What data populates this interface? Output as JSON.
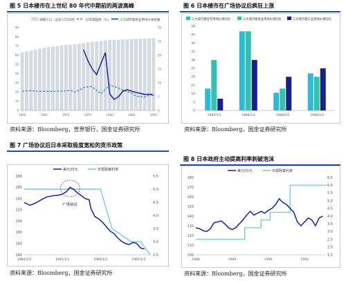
{
  "figures": [
    {
      "title": "图 5  日本楼市在上世纪 80 年代中期前的两波高峰",
      "source": "资料来源：Bloomberg，世界银行，国金证券研究所",
      "legend": [
        "城镇人口（占总人口比例）",
        "10年期国债（%）",
        "三大城市圈商业用地价格指数"
      ]
    },
    {
      "title": "图 6  日本楼市在广场协议后疯狂上涨",
      "source": "资料来源：Bloomberg，国金证券研究所",
      "legend": [
        "三大城市圈住宅用地价格同比",
        "三大城市圈商业用地价格同比",
        "三大城市圈工业用地价格同比"
      ]
    },
    {
      "title": "图 7  广场协议后日本采取极度宽松的货币政策",
      "source": "资料来源：Bloomberg，国金证券研究所",
      "legend": [
        "美元/日元",
        "日银政策利率"
      ],
      "annotation": "广场协议"
    },
    {
      "title": "图 8  日本政府主动提高利率刺破泡沫",
      "source": "资料来源：Bloomberg，国金证券研究所",
      "legend": [
        "美元/日元",
        "日银政策利率"
      ]
    }
  ],
  "chart_data": [
    {
      "type": "bar",
      "title": "图 5  日本楼市在上世纪 80 年代中期前的两波高峰",
      "x_ticks": [
        "1960",
        "1965",
        "1970",
        "1975",
        "1980",
        "1985",
        "1990"
      ],
      "ylim_left": [
        0,
        90
      ],
      "ylim_right": [
        0,
        30
      ],
      "categories": [
        1960,
        1961,
        1962,
        1963,
        1964,
        1965,
        1966,
        1967,
        1968,
        1969,
        1970,
        1971,
        1972,
        1973,
        1974,
        1975,
        1976,
        1977,
        1978,
        1979,
        1980,
        1981,
        1982,
        1983,
        1984,
        1985,
        1986,
        1987,
        1988,
        1989,
        1990
      ],
      "series": [
        {
          "name": "城镇人口（占总人口比例）",
          "type": "bar",
          "values": [
            63,
            64,
            65,
            66,
            67,
            68,
            69,
            69.5,
            70,
            70.5,
            71,
            71.5,
            72,
            72.5,
            73,
            74,
            74.5,
            75,
            75.5,
            76,
            76.5,
            76.8,
            77,
            77.2,
            77.4,
            77.6,
            77.8,
            78,
            78.2,
            78.4,
            78.6
          ]
        },
        {
          "name": "10年期国债（%）",
          "type": "line",
          "axis": "right",
          "values": [
            7.0,
            7.1,
            7.2,
            7.0,
            6.9,
            6.9,
            6.9,
            6.9,
            7.0,
            7.0,
            7.1,
            7.3,
            6.7,
            7.3,
            8.3,
            8.6,
            8.6,
            7.3,
            6.1,
            7.7,
            9.2,
            8.7,
            8.1,
            7.4,
            6.8,
            6.3,
            5.2,
            5.0,
            4.9,
            5.5,
            6.4
          ]
        },
        {
          "name": "三大城市圈商业用地价格指数",
          "type": "line",
          "axis": "right",
          "x": [
            1974,
            1975,
            1976,
            1977,
            1978,
            1979,
            1980,
            1981,
            1982,
            1983,
            1984,
            1985,
            1986,
            1987,
            1988,
            1989,
            1990
          ],
          "values": [
            22.0,
            18.0,
            15.0,
            13.0,
            17.0,
            21.0,
            6.0,
            4.0,
            5.0,
            7.0,
            7.5,
            7.0,
            6.5,
            6.2,
            5.8,
            5.9,
            5.5
          ]
        }
      ]
    },
    {
      "type": "bar",
      "title": "图 6  日本楼市在广场协议后疯狂上涨",
      "categories": [
        "1987/1/1",
        "1988/1/1",
        "1989/1/1",
        "1990/1/1"
      ],
      "ylim": [
        0,
        50
      ],
      "series": [
        {
          "name": "三大城市圈住宅用地价格同比",
          "values": [
            13,
            47,
            10.5,
            22
          ]
        },
        {
          "name": "三大城市圈商业用地价格同比",
          "values": [
            30,
            47,
            13,
            20
          ]
        },
        {
          "name": "三大城市圈工业用地价格同比",
          "values": [
            7,
            30,
            20,
            25
          ]
        }
      ]
    },
    {
      "type": "line",
      "title": "图 7  广场协议后日本采取极度宽松的货币政策",
      "x_ticks": [
        "1984/1/2",
        "1985/1/2",
        "1986/1/2",
        "1987/1/2"
      ],
      "ylim_left": [
        140,
        280
      ],
      "ylim_right": [
        2.5,
        5.5
      ],
      "series": [
        {
          "name": "美元/日元",
          "axis": "left",
          "x": [
            1984.0,
            1984.15,
            1984.3,
            1984.45,
            1984.6,
            1984.75,
            1984.9,
            1985.0,
            1985.1,
            1985.2,
            1985.3,
            1985.4,
            1985.5,
            1985.6,
            1985.7,
            1985.75,
            1985.85,
            1985.95,
            1986.05,
            1986.15,
            1986.25,
            1986.35,
            1986.45,
            1986.55,
            1986.65,
            1986.75,
            1986.85,
            1986.95,
            1987.05,
            1987.15
          ],
          "values": [
            233,
            228,
            232,
            238,
            243,
            245,
            246,
            248,
            252,
            260,
            256,
            250,
            245,
            240,
            238,
            222,
            208,
            204,
            198,
            190,
            182,
            178,
            170,
            164,
            160,
            158,
            162,
            160,
            152,
            150
          ]
        },
        {
          "name": "日银政策利率",
          "axis": "right",
          "x": [
            1984.0,
            1985.5,
            1986.0,
            1986.1,
            1986.2,
            1986.3,
            1986.8,
            1987.05,
            1987.3
          ],
          "values": [
            5.0,
            5.0,
            5.0,
            4.5,
            4.0,
            3.5,
            3.0,
            3.0,
            2.5
          ]
        }
      ]
    },
    {
      "type": "line",
      "title": "图 8  日本政府主动提高利率刺破泡沫",
      "x_ticks": [
        "1988",
        "1989",
        "1990",
        "1991"
      ],
      "ylim_left": [
        100,
        180
      ],
      "ylim_right": [
        1.5,
        6.5
      ],
      "series": [
        {
          "name": "美元/日元",
          "axis": "left",
          "x": [
            1988.0,
            1988.1,
            1988.2,
            1988.3,
            1988.4,
            1988.5,
            1988.6,
            1988.7,
            1988.8,
            1988.9,
            1989.0,
            1989.1,
            1989.2,
            1989.3,
            1989.4,
            1989.5,
            1989.6,
            1989.7,
            1989.8,
            1989.9,
            1990.0,
            1990.1,
            1990.2,
            1990.3,
            1990.4,
            1990.5,
            1990.6,
            1990.7,
            1990.8,
            1990.9,
            1991.0,
            1991.1,
            1991.2,
            1991.3,
            1991.4,
            1991.5
          ],
          "values": [
            128,
            127,
            125,
            124,
            127,
            133,
            134,
            135,
            132,
            128,
            126,
            128,
            132,
            136,
            141,
            145,
            141,
            143,
            145,
            143,
            146,
            148,
            152,
            158,
            154,
            152,
            148,
            144,
            134,
            130,
            134,
            138,
            136,
            130,
            138,
            140
          ]
        },
        {
          "name": "日银政策利率",
          "axis": "right",
          "x": [
            1988.0,
            1989.35,
            1989.35,
            1989.8,
            1989.8,
            1990.05,
            1990.05,
            1990.6,
            1990.6,
            1991.6
          ],
          "values": [
            2.5,
            2.5,
            3.25,
            3.25,
            3.75,
            3.75,
            4.25,
            4.25,
            6.0,
            6.0
          ]
        }
      ]
    }
  ],
  "colors": {
    "title_rule": "#1f4e9c",
    "urban_bar": "#d6dbe3",
    "bond_line": "#2b84c3",
    "land_index": "#1f2f9a",
    "residential": "#2bbbd8",
    "commercial": "#37c0b0",
    "industrial": "#1a1f8c",
    "usdjpy": "#1f2aa5",
    "policy_rate": "#74cbe3"
  }
}
